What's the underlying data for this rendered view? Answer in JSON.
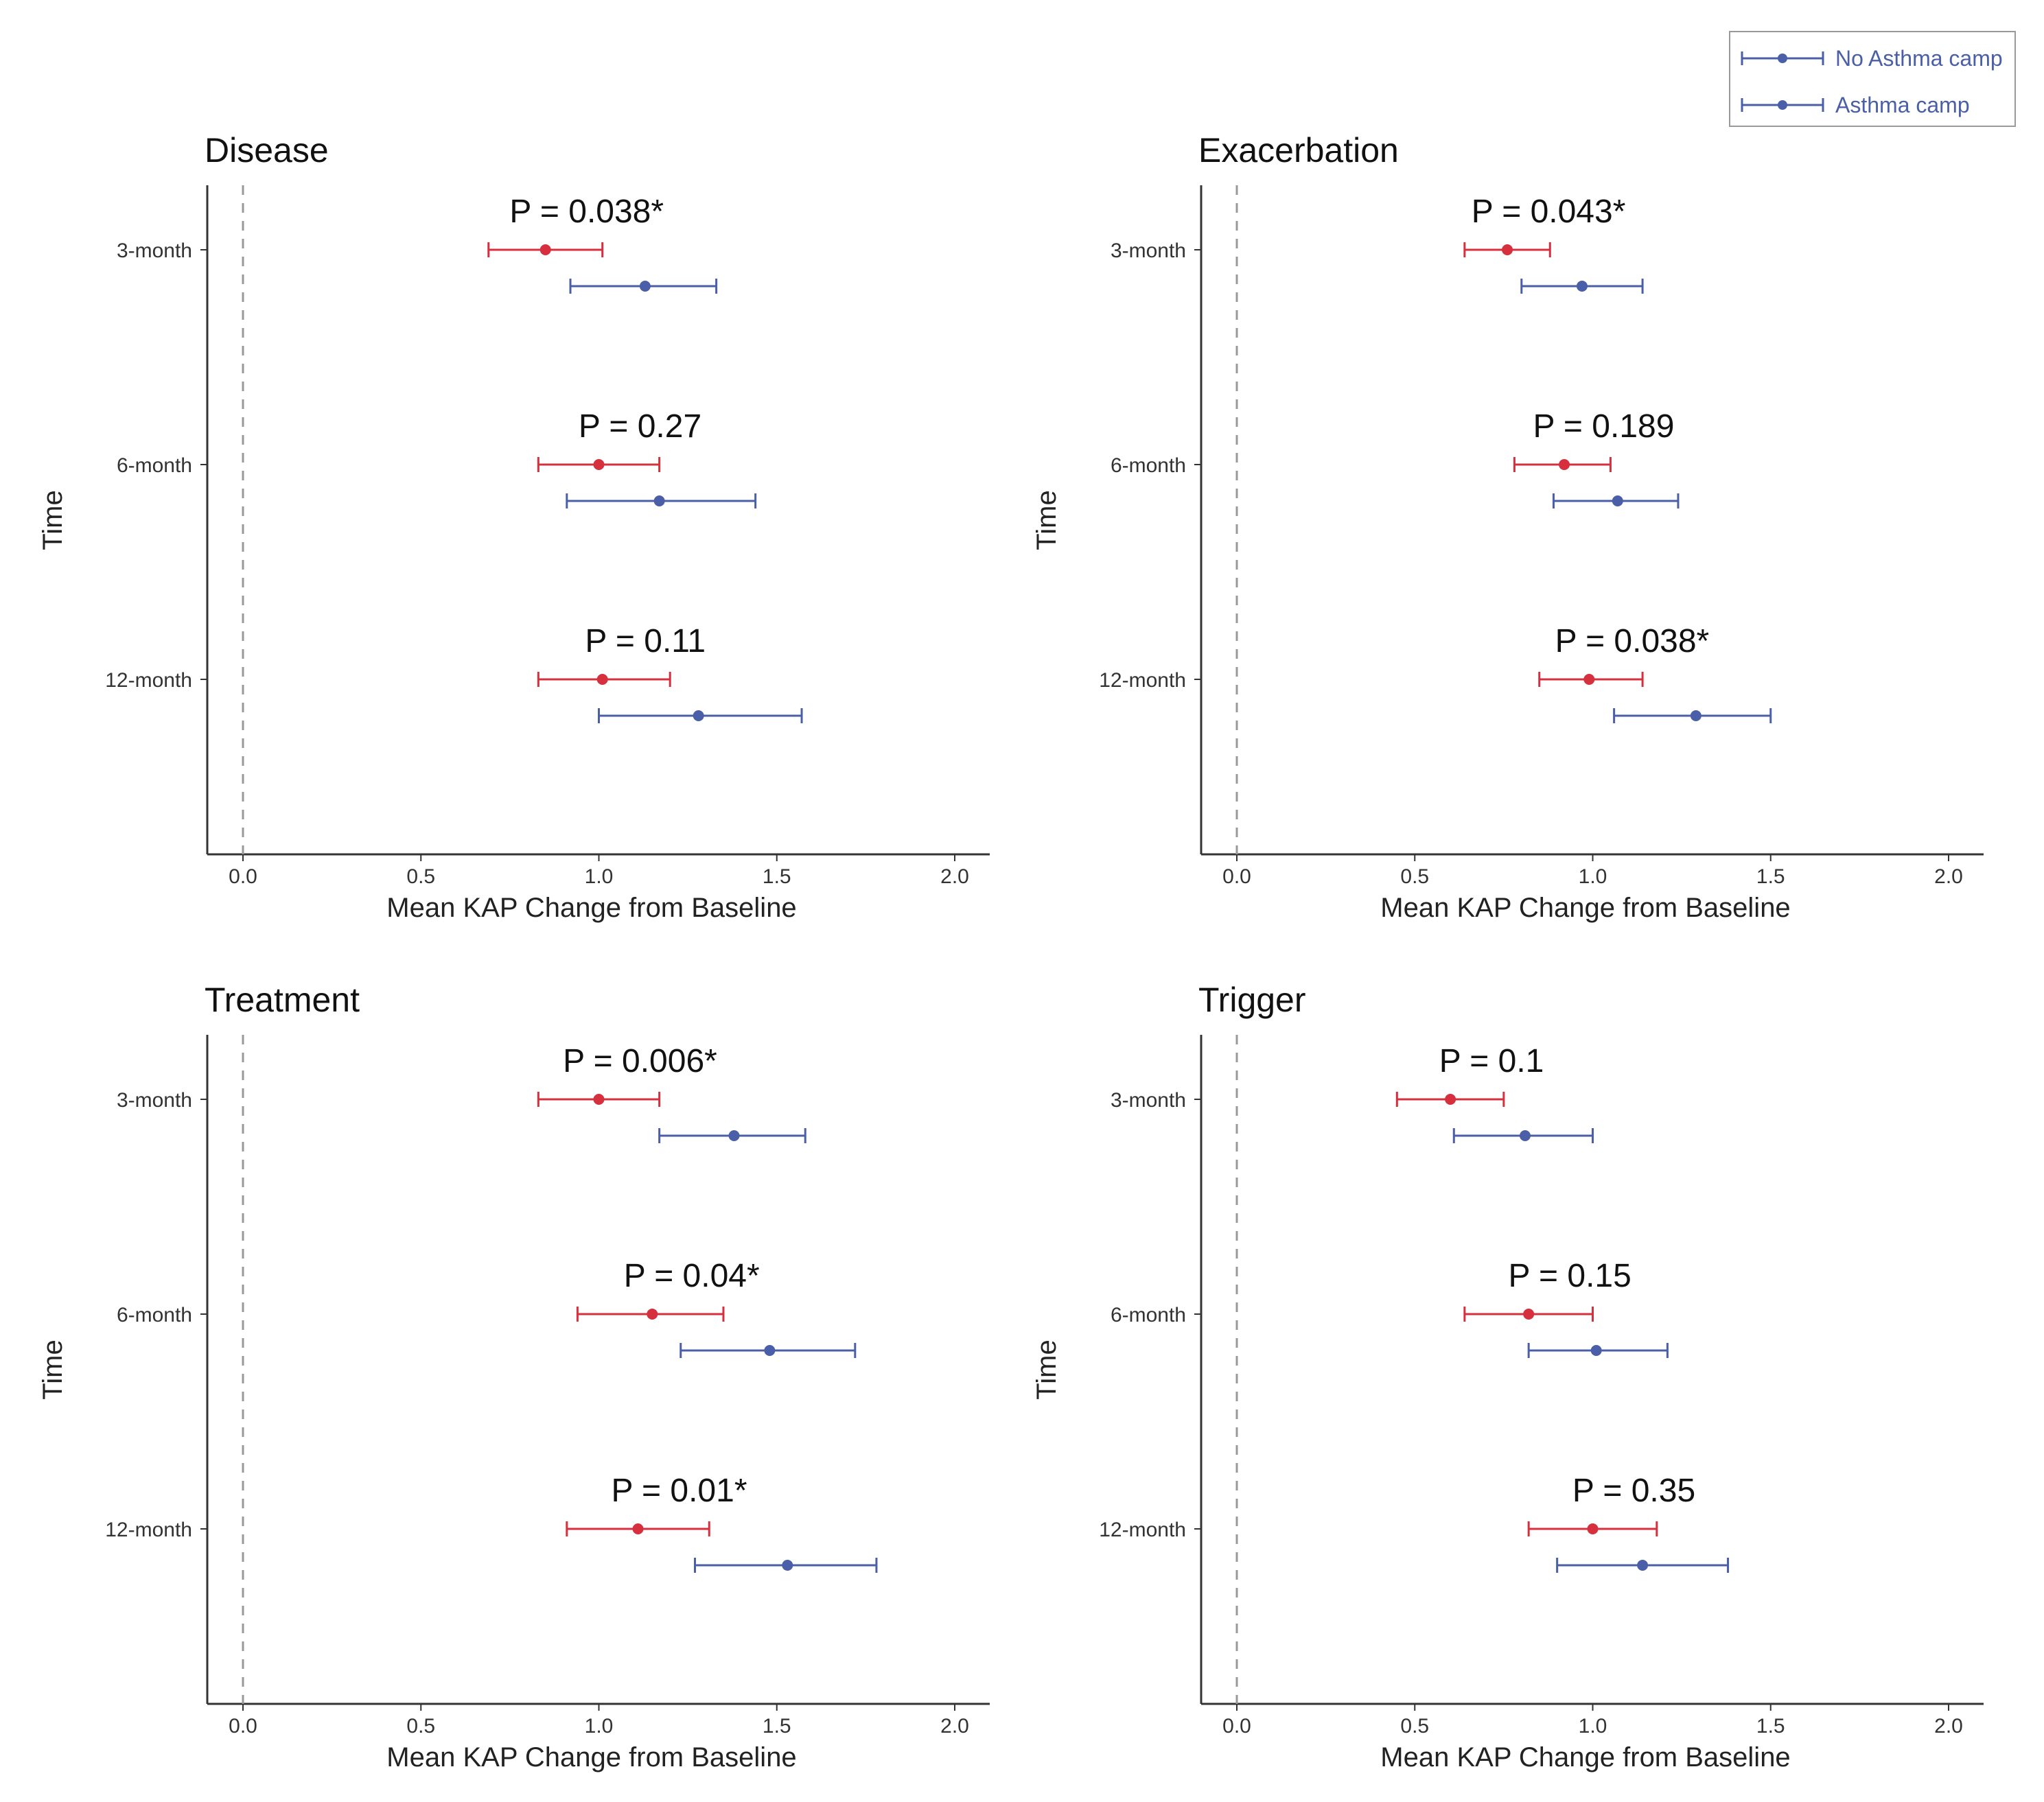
{
  "legend": {
    "items": [
      {
        "label": "No Asthma camp",
        "color": "#d62f3e"
      },
      {
        "label": "Asthma camp",
        "color": "#4a5fa8"
      }
    ]
  },
  "chart_data": [
    {
      "type": "scatter",
      "title": "Disease",
      "xlabel": "Mean KAP Change from Baseline",
      "ylabel": "Time",
      "xlim": [
        -0.1,
        2.1
      ],
      "xticks": [
        "0.0",
        "0.5",
        "1.0",
        "1.5",
        "2.0"
      ],
      "categories": [
        "3-month",
        "6-month",
        "12-month"
      ],
      "series": [
        {
          "name": "No Asthma camp",
          "color": "#d62f3e",
          "mean": [
            0.85,
            1.0,
            1.01
          ],
          "lower": [
            0.69,
            0.83,
            0.83
          ],
          "upper": [
            1.01,
            1.17,
            1.2
          ]
        },
        {
          "name": "Asthma camp",
          "color": "#4a5fa8",
          "mean": [
            1.13,
            1.17,
            1.28
          ],
          "lower": [
            0.92,
            0.91,
            1.0
          ],
          "upper": [
            1.33,
            1.44,
            1.57
          ]
        }
      ],
      "p_values": [
        "P = 0.038*",
        "P = 0.27",
        "P = 0.11"
      ]
    },
    {
      "type": "scatter",
      "title": "Exacerbation",
      "xlabel": "Mean KAP Change from Baseline",
      "ylabel": "Time",
      "xlim": [
        -0.1,
        2.1
      ],
      "xticks": [
        "0.0",
        "0.5",
        "1.0",
        "1.5",
        "2.0"
      ],
      "categories": [
        "3-month",
        "6-month",
        "12-month"
      ],
      "series": [
        {
          "name": "No Asthma camp",
          "color": "#d62f3e",
          "mean": [
            0.76,
            0.92,
            0.99
          ],
          "lower": [
            0.64,
            0.78,
            0.85
          ],
          "upper": [
            0.88,
            1.05,
            1.14
          ]
        },
        {
          "name": "Asthma camp",
          "color": "#4a5fa8",
          "mean": [
            0.97,
            1.07,
            1.29
          ],
          "lower": [
            0.8,
            0.89,
            1.06
          ],
          "upper": [
            1.14,
            1.24,
            1.5
          ]
        }
      ],
      "p_values": [
        "P = 0.043*",
        "P = 0.189",
        "P = 0.038*"
      ]
    },
    {
      "type": "scatter",
      "title": "Treatment",
      "xlabel": "Mean KAP Change from Baseline",
      "ylabel": "Time",
      "xlim": [
        -0.1,
        2.1
      ],
      "xticks": [
        "0.0",
        "0.5",
        "1.0",
        "1.5",
        "2.0"
      ],
      "categories": [
        "3-month",
        "6-month",
        "12-month"
      ],
      "series": [
        {
          "name": "No Asthma camp",
          "color": "#d62f3e",
          "mean": [
            1.0,
            1.15,
            1.11
          ],
          "lower": [
            0.83,
            0.94,
            0.91
          ],
          "upper": [
            1.17,
            1.35,
            1.31
          ]
        },
        {
          "name": "Asthma camp",
          "color": "#4a5fa8",
          "mean": [
            1.38,
            1.48,
            1.53
          ],
          "lower": [
            1.17,
            1.23,
            1.27
          ],
          "upper": [
            1.58,
            1.72,
            1.78
          ]
        }
      ],
      "p_values": [
        "P = 0.006*",
        "P = 0.04*",
        "P = 0.01*"
      ]
    },
    {
      "type": "scatter",
      "title": "Trigger",
      "xlabel": "Mean KAP Change from Baseline",
      "ylabel": "Time",
      "xlim": [
        -0.1,
        2.1
      ],
      "xticks": [
        "0.0",
        "0.5",
        "1.0",
        "1.5",
        "2.0"
      ],
      "categories": [
        "3-month",
        "6-month",
        "12-month"
      ],
      "series": [
        {
          "name": "No Asthma camp",
          "color": "#d62f3e",
          "mean": [
            0.6,
            0.82,
            1.0
          ],
          "lower": [
            0.45,
            0.64,
            0.82
          ],
          "upper": [
            0.75,
            1.0,
            1.18
          ]
        },
        {
          "name": "Asthma camp",
          "color": "#4a5fa8",
          "mean": [
            0.81,
            1.01,
            1.14
          ],
          "lower": [
            0.61,
            0.82,
            0.9
          ],
          "upper": [
            1.0,
            1.21,
            1.38
          ]
        }
      ],
      "p_values": [
        "P = 0.1",
        "P = 0.15",
        "P = 0.35"
      ]
    }
  ]
}
